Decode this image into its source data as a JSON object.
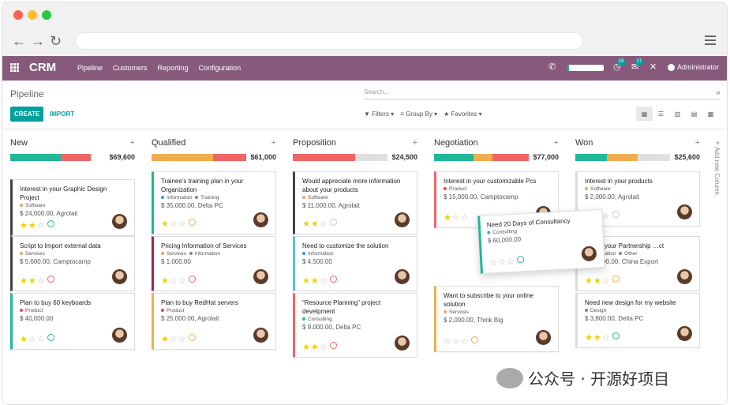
{
  "app": {
    "name": "CRM",
    "menu": [
      "Pipeline",
      "Customers",
      "Reporting",
      "Configuration"
    ],
    "user": "Administrator",
    "badges": [
      "15",
      "17"
    ]
  },
  "control": {
    "breadcrumb": "Pipeline",
    "create": "CREATE",
    "import": "IMPORT",
    "search_placeholder": "Search...",
    "filters": "Filters",
    "group_by": "Group By",
    "favorites": "Favorites"
  },
  "columns": [
    {
      "title": "New",
      "total": "$69,600",
      "progress": [
        {
          "color": "#21b799",
          "pct": 53
        },
        {
          "color": "#ef6565",
          "pct": 32
        }
      ],
      "cards": [
        {
          "title": "Interest in your Graphic Design Project",
          "tag": "Software",
          "tag_color": "#f4a460",
          "revenue": "$ 24,000.00, Agrolait",
          "stars": 2,
          "activity": "green",
          "border": "#444"
        },
        {
          "title": "Script to Import external data",
          "tag": "Services",
          "tag_color": "#f4a460",
          "revenue": "$ 5,600.00, Camptocamp",
          "stars": 2,
          "activity": "red",
          "border": "#444"
        },
        {
          "title": "Plan to buy 60 keyboards",
          "tag": "Product",
          "tag_color": "#e74c3c",
          "revenue": "$ 40,000.00",
          "stars": 1,
          "activity": "green",
          "border": "#21b799"
        }
      ]
    },
    {
      "title": "Qualified",
      "total": "$61,000",
      "progress": [
        {
          "color": "#f0ad4e",
          "pct": 65
        },
        {
          "color": "#ef6565",
          "pct": 35
        }
      ],
      "cards": [
        {
          "title": "Trainee's training plan in your Organization",
          "tag": "Information",
          "tag2": "Training",
          "tag_color": "#3498db",
          "revenue": "$ 35,000.00, Delta PC",
          "stars": 1,
          "activity": "orange",
          "border": "#21b799"
        },
        {
          "title": "Pricing Information of Services",
          "tag": "Services",
          "tag2": "Information",
          "tag_color": "#f4a460",
          "revenue": "$ 1,000.00",
          "stars": 1,
          "activity": "red",
          "border": "#a0245e"
        },
        {
          "title": "Plan to buy RedHat servers",
          "tag": "Product",
          "tag_color": "#e74c3c",
          "revenue": "$ 25,000.00, Agrolait",
          "stars": 1,
          "activity": "orange",
          "border": "#f0ad4e"
        }
      ]
    },
    {
      "title": "Proposition",
      "total": "$24,500",
      "progress": [
        {
          "color": "#ef6565",
          "pct": 66
        },
        {
          "color": "#e0e0e0",
          "pct": 34
        }
      ],
      "cards": [
        {
          "title": "Would appreciate more information about your products",
          "tag": "Software",
          "tag_color": "#f4a460",
          "revenue": "$ 11,000.00, Agrolait",
          "stars": 2,
          "activity": "grey",
          "border": "#444"
        },
        {
          "title": "Need to customize the solution",
          "tag": "Information",
          "tag_color": "#3498db",
          "revenue": "$ 4,500.00",
          "stars": 2,
          "activity": "red",
          "border": "#5bc0de"
        },
        {
          "title": "“Resource Planning” project develpment",
          "tag": "Consulting",
          "tag_color": "#21b799",
          "revenue": "$ 9,000.00, Delta PC",
          "stars": 2,
          "activity": "red",
          "border": "#ef6565"
        }
      ]
    },
    {
      "title": "Negotiation",
      "total": "$77,000",
      "progress": [
        {
          "color": "#21b799",
          "pct": 42
        },
        {
          "color": "#f0ad4e",
          "pct": 20
        },
        {
          "color": "#ef6565",
          "pct": 38
        }
      ],
      "cards": [
        {
          "title": "Interest in your customizable Pcs",
          "tag": "Product",
          "tag_color": "#e74c3c",
          "revenue": "$ 15,000.00, Camptocamp",
          "stars": 1,
          "activity": "",
          "border": "#ef6565"
        },
        {
          "title": "Want to subscribe to your online solution",
          "tag": "Services",
          "tag_color": "#f4a460",
          "revenue": "$ 2,000.00, Think Big",
          "stars": 0,
          "activity": "orange",
          "border": "#f0ad4e"
        }
      ]
    },
    {
      "title": "Won",
      "total": "$25,600",
      "progress": [
        {
          "color": "#21b799",
          "pct": 33
        },
        {
          "color": "#f0ad4e",
          "pct": 33
        },
        {
          "color": "#e0e0e0",
          "pct": 34
        }
      ],
      "cards": [
        {
          "title": "Interest in your products",
          "tag": "Software",
          "tag_color": "#f4a460",
          "revenue": "$ 2,000.00, Agrolait",
          "stars": 0,
          "activity": "grey",
          "border": "#ddd"
        },
        {
          "title": "…st in your Partnership …ct",
          "tag": "Information",
          "tag2": "Other",
          "tag_color": "#3498db",
          "revenue": "$ 19,800.00, China Export",
          "stars": 2,
          "activity": "orange",
          "border": "#ddd"
        },
        {
          "title": "Need new design for my website",
          "tag": "Design",
          "tag_color": "#888",
          "revenue": "$ 3,800.00, Delta PC",
          "stars": 2,
          "activity": "green",
          "border": "#ddd"
        }
      ]
    }
  ],
  "dragged": {
    "title": "Need 20 Days of Consultancy",
    "tag": "Consulting",
    "revenue": "$ 60,000.00",
    "stars": 0
  },
  "add_column": "Add new Column",
  "watermark": "公众号 · 开源好项目"
}
